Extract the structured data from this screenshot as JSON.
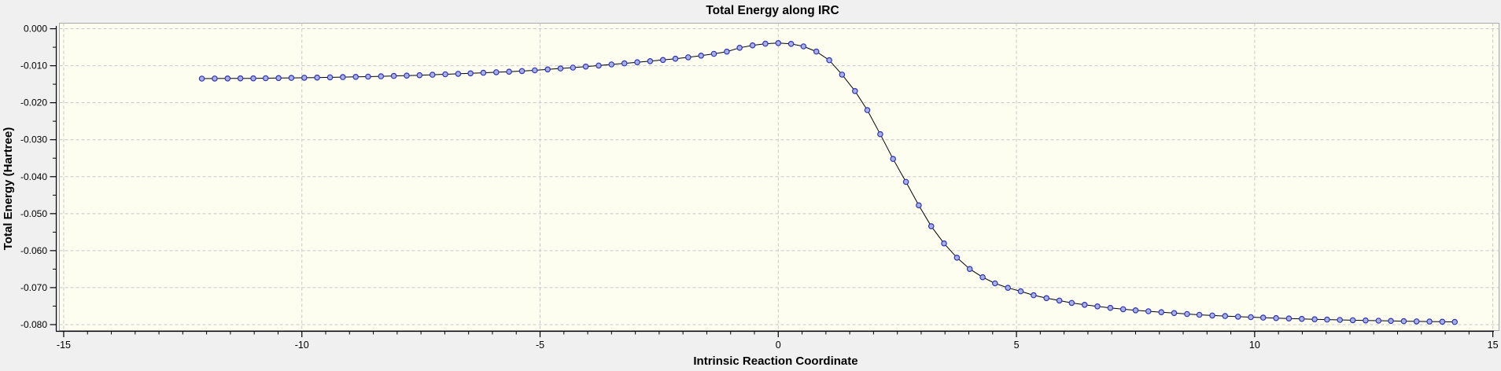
{
  "colors": {
    "outer_bg": "#F0F0F0",
    "plot_bg": "#FDFDF0",
    "plot_border": "#A8A8A8",
    "grid": "#C8C8C8",
    "axis": "#000000",
    "text": "#000000",
    "line": "#000000",
    "marker_fill": "#A8B0E6",
    "marker_stroke": "#2E34B8"
  },
  "chart_data": {
    "type": "line",
    "title": "Total Energy along IRC",
    "xlabel": "Intrinsic Reaction Coordinate",
    "ylabel": "Total Energy (Hartree)",
    "grid": "dashed",
    "legend_position": "none",
    "xlim": [
      -15.09,
      15.13
    ],
    "ylim": [
      -0.0816,
      0.0015
    ],
    "x_ticks": [
      {
        "v": -15,
        "label": "-15"
      },
      {
        "v": -10,
        "label": "-10"
      },
      {
        "v": -5,
        "label": "-5"
      },
      {
        "v": 0,
        "label": "0"
      },
      {
        "v": 5,
        "label": "5"
      },
      {
        "v": 10,
        "label": "10"
      },
      {
        "v": 15,
        "label": "15"
      }
    ],
    "x_minor_step": 0.5,
    "y_ticks": [
      {
        "v": 0.0,
        "label": "0.000"
      },
      {
        "v": -0.01,
        "label": "-0.010"
      },
      {
        "v": -0.02,
        "label": "-0.020"
      },
      {
        "v": -0.03,
        "label": "-0.030"
      },
      {
        "v": -0.04,
        "label": "-0.040"
      },
      {
        "v": -0.05,
        "label": "-0.050"
      },
      {
        "v": -0.06,
        "label": "-0.060"
      },
      {
        "v": -0.07,
        "label": "-0.070"
      },
      {
        "v": -0.08,
        "label": "-0.080"
      }
    ],
    "y_minor_step": 0.005,
    "series": [
      {
        "name": "Total Energy",
        "marker": "circle",
        "points": [
          [
            -12.1,
            -0.01348
          ],
          [
            -11.83,
            -0.01347
          ],
          [
            -11.56,
            -0.01345
          ],
          [
            -11.29,
            -0.01343
          ],
          [
            -11.02,
            -0.01341
          ],
          [
            -10.76,
            -0.01338
          ],
          [
            -10.49,
            -0.01334
          ],
          [
            -10.22,
            -0.0133
          ],
          [
            -9.95,
            -0.01326
          ],
          [
            -9.68,
            -0.01321
          ],
          [
            -9.41,
            -0.01315
          ],
          [
            -9.14,
            -0.01309
          ],
          [
            -8.87,
            -0.01302
          ],
          [
            -8.61,
            -0.01295
          ],
          [
            -8.34,
            -0.01286
          ],
          [
            -8.07,
            -0.01277
          ],
          [
            -7.8,
            -0.01267
          ],
          [
            -7.53,
            -0.01256
          ],
          [
            -7.26,
            -0.01244
          ],
          [
            -6.99,
            -0.01232
          ],
          [
            -6.72,
            -0.01219
          ],
          [
            -6.46,
            -0.01206
          ],
          [
            -6.19,
            -0.01192
          ],
          [
            -5.92,
            -0.01177
          ],
          [
            -5.65,
            -0.01161
          ],
          [
            -5.38,
            -0.01144
          ],
          [
            -5.11,
            -0.01125
          ],
          [
            -4.84,
            -0.011
          ],
          [
            -4.57,
            -0.01075
          ],
          [
            -4.31,
            -0.0105
          ],
          [
            -4.04,
            -0.01023
          ],
          [
            -3.77,
            -0.00995
          ],
          [
            -3.5,
            -0.00966
          ],
          [
            -3.23,
            -0.00937
          ],
          [
            -2.96,
            -0.00907
          ],
          [
            -2.69,
            -0.00876
          ],
          [
            -2.42,
            -0.00844
          ],
          [
            -2.16,
            -0.0081
          ],
          [
            -1.89,
            -0.00772
          ],
          [
            -1.62,
            -0.00728
          ],
          [
            -1.35,
            -0.00678
          ],
          [
            -1.08,
            -0.0062
          ],
          [
            -0.81,
            -0.00515
          ],
          [
            -0.54,
            -0.0045
          ],
          [
            -0.27,
            -0.00405
          ],
          [
            0.0,
            -0.00387
          ],
          [
            0.27,
            -0.0041
          ],
          [
            0.53,
            -0.00478
          ],
          [
            0.8,
            -0.00618
          ],
          [
            1.07,
            -0.0085
          ],
          [
            1.34,
            -0.0124
          ],
          [
            1.61,
            -0.01685
          ],
          [
            1.87,
            -0.022
          ],
          [
            2.14,
            -0.0285
          ],
          [
            2.41,
            -0.0352
          ],
          [
            2.68,
            -0.0414
          ],
          [
            2.95,
            -0.04775
          ],
          [
            3.21,
            -0.0534
          ],
          [
            3.48,
            -0.05805
          ],
          [
            3.75,
            -0.0619
          ],
          [
            4.02,
            -0.06495
          ],
          [
            4.29,
            -0.0672
          ],
          [
            4.55,
            -0.06885
          ],
          [
            4.82,
            -0.07005
          ],
          [
            5.09,
            -0.071
          ],
          [
            5.36,
            -0.07205
          ],
          [
            5.63,
            -0.07285
          ],
          [
            5.9,
            -0.0735
          ],
          [
            6.16,
            -0.07415
          ],
          [
            6.43,
            -0.07465
          ],
          [
            6.7,
            -0.07508
          ],
          [
            6.97,
            -0.07548
          ],
          [
            7.24,
            -0.07583
          ],
          [
            7.5,
            -0.07613
          ],
          [
            7.77,
            -0.0764
          ],
          [
            8.04,
            -0.07665
          ],
          [
            8.31,
            -0.07689
          ],
          [
            8.58,
            -0.07713
          ],
          [
            8.84,
            -0.07734
          ],
          [
            9.11,
            -0.07754
          ],
          [
            9.38,
            -0.0777
          ],
          [
            9.65,
            -0.07785
          ],
          [
            9.92,
            -0.07799
          ],
          [
            10.18,
            -0.07812
          ],
          [
            10.45,
            -0.07824
          ],
          [
            10.72,
            -0.07835
          ],
          [
            10.99,
            -0.07846
          ],
          [
            11.26,
            -0.07856
          ],
          [
            11.52,
            -0.07865
          ],
          [
            11.79,
            -0.07873
          ],
          [
            12.06,
            -0.07881
          ],
          [
            12.33,
            -0.07888
          ],
          [
            12.6,
            -0.07895
          ],
          [
            12.86,
            -0.07901
          ],
          [
            13.13,
            -0.07907
          ],
          [
            13.4,
            -0.07913
          ],
          [
            13.67,
            -0.07918
          ],
          [
            13.94,
            -0.07923
          ],
          [
            14.2,
            -0.07928
          ]
        ]
      }
    ]
  }
}
